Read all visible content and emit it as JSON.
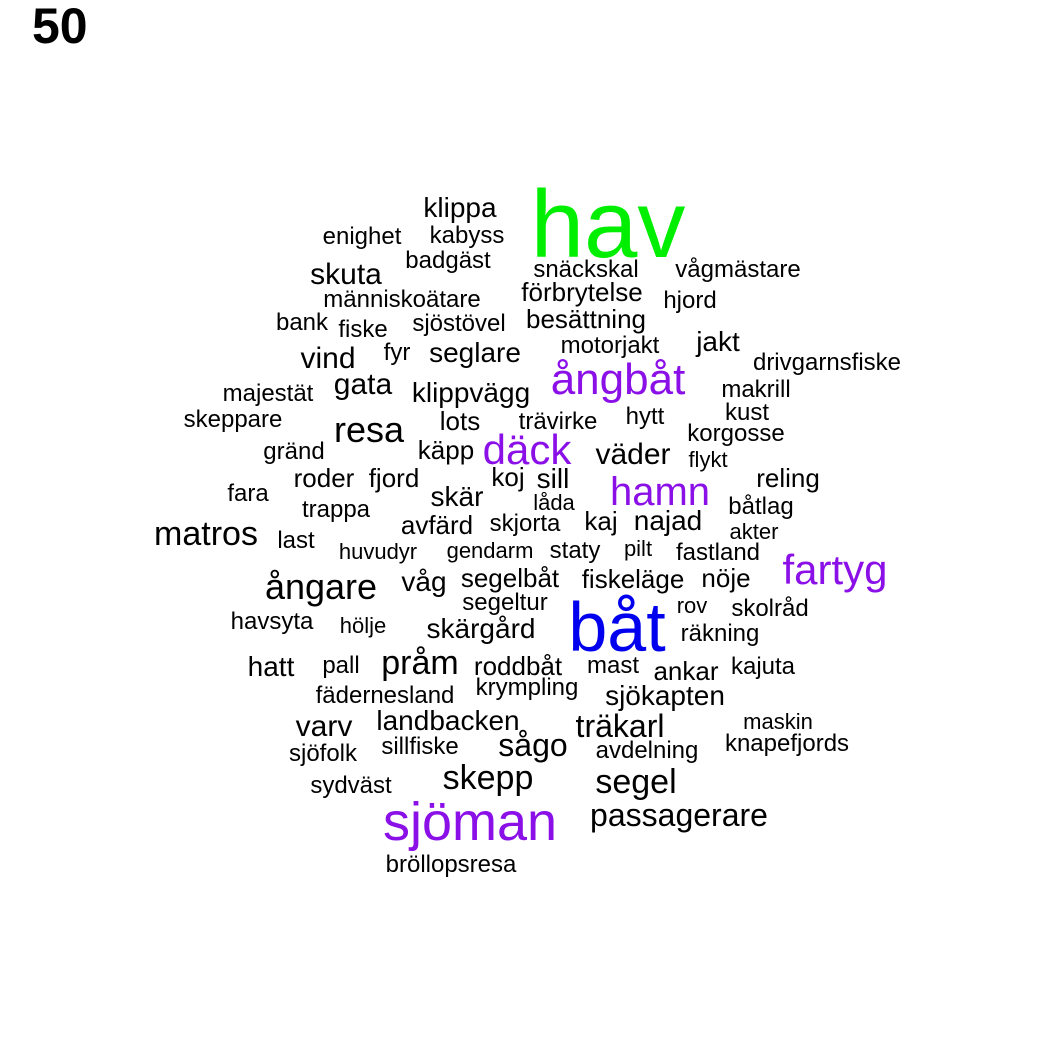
{
  "panel_label": "50",
  "colors": {
    "tier1": "#00ee00",
    "tier2": "#0000ee",
    "tier3": "#8b10e8",
    "default": "#000000"
  },
  "words": [
    {
      "text": "hav",
      "tier": "tier1"
    },
    {
      "text": "båt",
      "tier": "tier2"
    },
    {
      "text": "sjöman",
      "tier": "tier3"
    },
    {
      "text": "ångbåt",
      "tier": "tier3"
    },
    {
      "text": "däck",
      "tier": "tier3"
    },
    {
      "text": "hamn",
      "tier": "tier3"
    },
    {
      "text": "fartyg",
      "tier": "tier3"
    },
    {
      "text": "klippa"
    },
    {
      "text": "enighet"
    },
    {
      "text": "kabyss"
    },
    {
      "text": "badgäst"
    },
    {
      "text": "skuta"
    },
    {
      "text": "snäckskal"
    },
    {
      "text": "vågmästare"
    },
    {
      "text": "förbrytelse"
    },
    {
      "text": "människoätare"
    },
    {
      "text": "hjord"
    },
    {
      "text": "bank"
    },
    {
      "text": "fiske"
    },
    {
      "text": "sjöstövel"
    },
    {
      "text": "besättning"
    },
    {
      "text": "jakt"
    },
    {
      "text": "vind"
    },
    {
      "text": "fyr"
    },
    {
      "text": "seglare"
    },
    {
      "text": "motorjakt"
    },
    {
      "text": "drivgarnsfiske"
    },
    {
      "text": "majestät"
    },
    {
      "text": "gata"
    },
    {
      "text": "klippvägg"
    },
    {
      "text": "makrill"
    },
    {
      "text": "kust"
    },
    {
      "text": "skeppare"
    },
    {
      "text": "resa"
    },
    {
      "text": "lots"
    },
    {
      "text": "trävirke"
    },
    {
      "text": "hytt"
    },
    {
      "text": "korgosse"
    },
    {
      "text": "gränd"
    },
    {
      "text": "käpp"
    },
    {
      "text": "väder"
    },
    {
      "text": "flykt"
    },
    {
      "text": "roder"
    },
    {
      "text": "fjord"
    },
    {
      "text": "koj"
    },
    {
      "text": "sill"
    },
    {
      "text": "reling"
    },
    {
      "text": "fara"
    },
    {
      "text": "skär"
    },
    {
      "text": "låda"
    },
    {
      "text": "båtlag"
    },
    {
      "text": "trappa"
    },
    {
      "text": "matros"
    },
    {
      "text": "avfärd"
    },
    {
      "text": "skjorta"
    },
    {
      "text": "kaj"
    },
    {
      "text": "najad"
    },
    {
      "text": "akter"
    },
    {
      "text": "last"
    },
    {
      "text": "huvudyr"
    },
    {
      "text": "gendarm"
    },
    {
      "text": "staty"
    },
    {
      "text": "pilt"
    },
    {
      "text": "fastland"
    },
    {
      "text": "ångare"
    },
    {
      "text": "våg"
    },
    {
      "text": "segelbåt"
    },
    {
      "text": "fiskeläge"
    },
    {
      "text": "nöje"
    },
    {
      "text": "segeltur"
    },
    {
      "text": "rov"
    },
    {
      "text": "skolråd"
    },
    {
      "text": "havsyta"
    },
    {
      "text": "hölje"
    },
    {
      "text": "skärgård"
    },
    {
      "text": "räkning"
    },
    {
      "text": "hatt"
    },
    {
      "text": "pall"
    },
    {
      "text": "pråm"
    },
    {
      "text": "roddbåt"
    },
    {
      "text": "mast"
    },
    {
      "text": "ankar"
    },
    {
      "text": "kajuta"
    },
    {
      "text": "fädernesland"
    },
    {
      "text": "krympling"
    },
    {
      "text": "sjökapten"
    },
    {
      "text": "varv"
    },
    {
      "text": "landbacken"
    },
    {
      "text": "träkarl"
    },
    {
      "text": "maskin"
    },
    {
      "text": "sjöfolk"
    },
    {
      "text": "sillfiske"
    },
    {
      "text": "sågo"
    },
    {
      "text": "avdelning"
    },
    {
      "text": "knapefjords"
    },
    {
      "text": "skepp"
    },
    {
      "text": "segel"
    },
    {
      "text": "sydväst"
    },
    {
      "text": "passagerare"
    },
    {
      "text": "bröllopsresa"
    }
  ]
}
